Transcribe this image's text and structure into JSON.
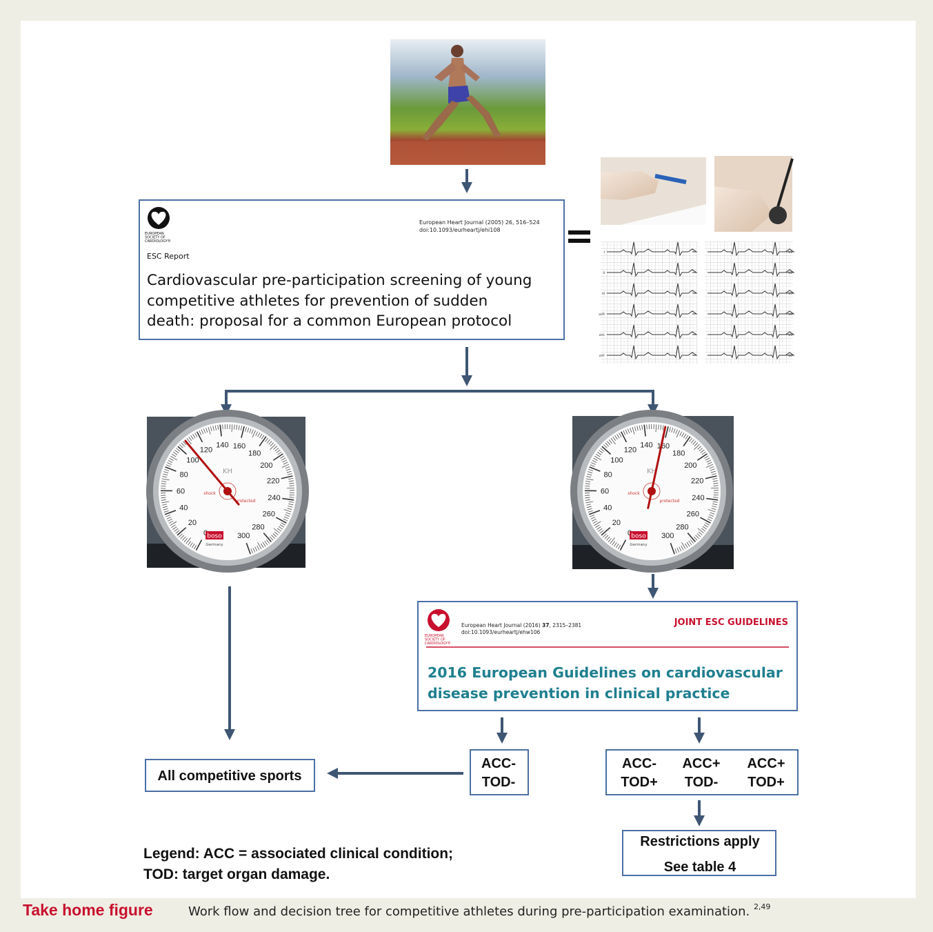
{
  "report": {
    "society": [
      "EUROPEAN",
      "SOCIETY OF",
      "CARDIOLOGY®"
    ],
    "journal": "European Heart Journal (2005) 26, 516–524",
    "doi": "doi:10.1093/eurheartj/ehi108",
    "kind": "ESC Report",
    "title_lines": [
      "Cardiovascular pre-participation screening of young",
      "competitive athletes for prevention of sudden",
      "death: proposal for a common European protocol"
    ]
  },
  "ecg": {
    "leads_left": [
      "I",
      "II",
      "III",
      "aVR",
      "aVL",
      "aVF"
    ],
    "leads_right": [
      "V1",
      "V2",
      "V3",
      "V4",
      "V5",
      "V6"
    ]
  },
  "gauge": {
    "scale": [
      "0",
      "20",
      "40",
      "60",
      "80",
      "100",
      "120",
      "140",
      "160",
      "180",
      "200",
      "220",
      "240",
      "260",
      "280",
      "300"
    ],
    "dial": "KH",
    "shock": "shock",
    "protected": "protected",
    "brand": "boso",
    "origin": "Germany"
  },
  "guidelines": {
    "society": [
      "EUROPEAN",
      "SOCIETY OF",
      "CARDIOLOGY®"
    ],
    "journal": "European Heart Journal (2016)",
    "volume": "37",
    "pages": ", 2315–2381",
    "doi": "doi:10.1093/eurheartj/ehw106",
    "label": "JOINT ESC GUIDELINES",
    "title_lines": [
      "2016 European Guidelines on cardiovascular",
      "disease prevention in clinical practice"
    ]
  },
  "outcomes": {
    "negative": {
      "acc": "ACC-",
      "tod": "TOD-"
    },
    "positive": [
      {
        "acc": "ACC-",
        "tod": "TOD+"
      },
      {
        "acc": "ACC+",
        "tod": "TOD-"
      },
      {
        "acc": "ACC+",
        "tod": "TOD+"
      }
    ]
  },
  "all_sports": "All competitive sports",
  "restrictions": [
    "Restrictions apply",
    "See table 4"
  ],
  "legend": [
    "Legend: ACC = associated clinical condition;",
    "TOD: target organ damage."
  ],
  "caption": {
    "label": "Take home figure",
    "text": "Work flow and decision tree for competitive athletes during pre-participation examination.",
    "refs": "2,49"
  }
}
